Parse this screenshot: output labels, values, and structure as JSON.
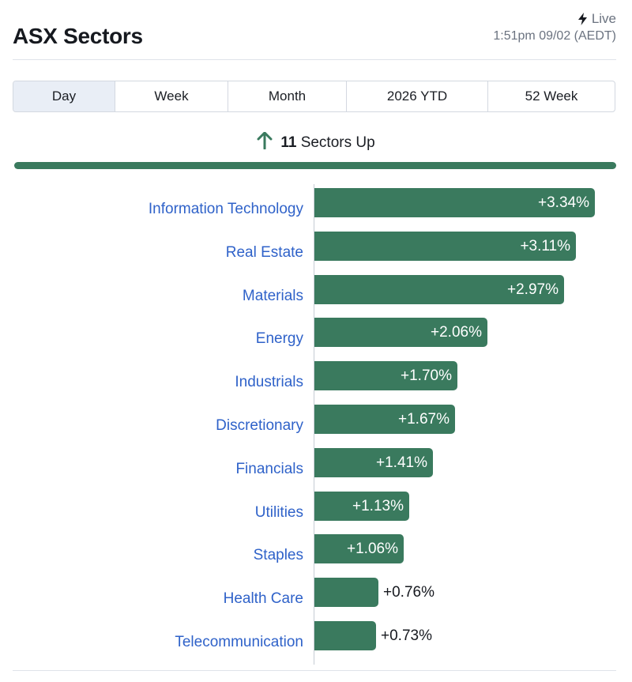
{
  "header": {
    "title": "ASX Sectors",
    "live_label": "Live",
    "timestamp": "1:51pm 09/02 (AEDT)"
  },
  "tabs": [
    {
      "label": "Day",
      "active": true
    },
    {
      "label": "Week",
      "active": false
    },
    {
      "label": "Month",
      "active": false
    },
    {
      "label": "2026 YTD",
      "active": false
    },
    {
      "label": "52 Week",
      "active": false
    }
  ],
  "summary": {
    "count": "11",
    "text": "Sectors Up",
    "icon": "arrow-up-icon",
    "color": "#3a7a5e"
  },
  "colors": {
    "up": "#3a7a5e",
    "link": "#2f62c9",
    "active_tab": "#e9eef6"
  },
  "chart_data": {
    "type": "bar",
    "orientation": "horizontal",
    "categories": [
      "Information Technology",
      "Real Estate",
      "Materials",
      "Energy",
      "Industrials",
      "Discretionary",
      "Financials",
      "Utilities",
      "Staples",
      "Health Care",
      "Telecommunication"
    ],
    "values": [
      3.34,
      3.11,
      2.97,
      2.06,
      1.7,
      1.67,
      1.41,
      1.13,
      1.06,
      0.76,
      0.73
    ],
    "labels": [
      "+3.34%",
      "+3.11%",
      "+2.97%",
      "+2.06%",
      "+1.70%",
      "+1.67%",
      "+1.41%",
      "+1.13%",
      "+1.06%",
      "+0.76%",
      "+0.73%"
    ]
  }
}
